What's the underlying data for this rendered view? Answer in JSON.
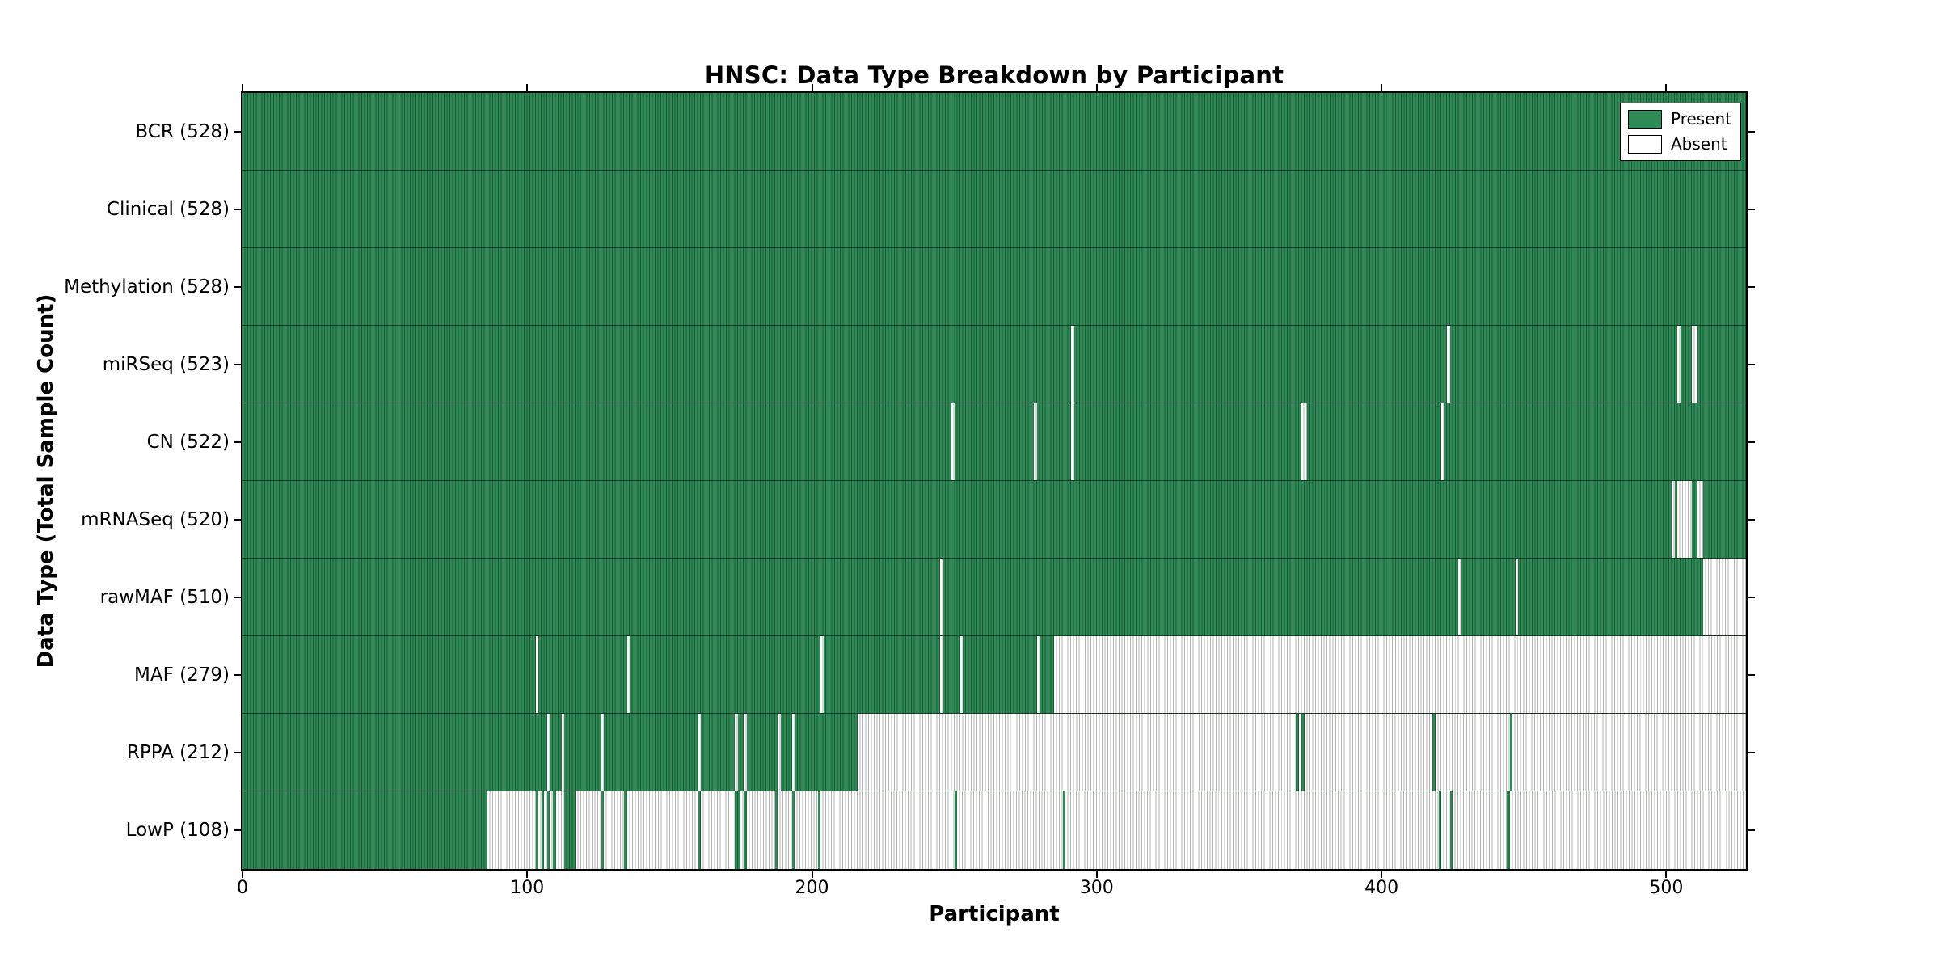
{
  "chart_data": {
    "type": "heatmap",
    "title": "HNSC: Data Type Breakdown by Participant",
    "xlabel": "Participant",
    "ylabel": "Data Type (Total Sample Count)",
    "x_range": [
      0,
      528
    ],
    "x_ticks": [
      0,
      100,
      200,
      300,
      400,
      500
    ],
    "grid": false,
    "legend": {
      "position": "upper right",
      "entries": [
        {
          "label": "Present",
          "color": "#2e8b57"
        },
        {
          "label": "Absent",
          "color": "#ffffff"
        }
      ]
    },
    "colors": {
      "present_fill": "#2e8b57",
      "present_edge": "#1d5736",
      "absent_fill": "#ffffff",
      "absent_edge": "#b3b3b3",
      "spine": "#000000",
      "row_separator": "rgba(0,0,0,0.55)"
    },
    "rows": [
      {
        "data_type": "BCR",
        "label": "BCR (528)",
        "present_count": 528,
        "absent_ranges": []
      },
      {
        "data_type": "Clinical",
        "label": "Clinical (528)",
        "present_count": 528,
        "absent_ranges": []
      },
      {
        "data_type": "Methylation",
        "label": "Methylation (528)",
        "present_count": 528,
        "absent_ranges": []
      },
      {
        "data_type": "miRSeq",
        "label": "miRSeq (523)",
        "present_count": 523,
        "absent_ranges": [
          [
            291,
            292
          ],
          [
            423,
            424
          ],
          [
            504,
            505
          ],
          [
            509,
            511
          ]
        ]
      },
      {
        "data_type": "CN",
        "label": "CN (522)",
        "present_count": 522,
        "absent_ranges": [
          [
            249,
            250
          ],
          [
            278,
            279
          ],
          [
            291,
            292
          ],
          [
            372,
            374
          ],
          [
            421,
            422
          ]
        ]
      },
      {
        "data_type": "mRNASeq",
        "label": "mRNASeq (520)",
        "present_count": 520,
        "absent_ranges": [
          [
            502,
            503
          ],
          [
            504,
            509
          ],
          [
            511,
            513
          ]
        ]
      },
      {
        "data_type": "rawMAF",
        "label": "rawMAF (510)",
        "present_count": 510,
        "absent_ranges": [
          [
            245,
            246
          ],
          [
            427,
            428
          ],
          [
            447,
            448
          ],
          [
            513,
            528
          ]
        ]
      },
      {
        "data_type": "MAF",
        "label": "MAF (279)",
        "present_count": 279,
        "absent_ranges": [
          [
            103,
            104
          ],
          [
            135,
            136
          ],
          [
            203,
            204
          ],
          [
            245,
            246
          ],
          [
            252,
            253
          ],
          [
            279,
            280
          ],
          [
            285,
            528
          ]
        ]
      },
      {
        "data_type": "RPPA",
        "label": "RPPA (212)",
        "present_count": 212,
        "absent_ranges": [
          [
            107,
            108
          ],
          [
            112,
            113
          ],
          [
            126,
            127
          ],
          [
            160,
            161
          ],
          [
            173,
            174
          ],
          [
            176,
            177
          ],
          [
            188,
            189
          ],
          [
            193,
            194
          ],
          [
            216,
            370
          ],
          [
            371,
            372
          ],
          [
            373,
            418
          ],
          [
            419,
            445
          ],
          [
            446,
            528
          ]
        ]
      },
      {
        "data_type": "LowP",
        "label": "LowP (108)",
        "present_count": 108,
        "absent_ranges": [
          [
            86,
            103
          ],
          [
            104,
            105
          ],
          [
            106,
            107
          ],
          [
            108,
            109
          ],
          [
            110,
            113
          ],
          [
            117,
            126
          ],
          [
            127,
            134
          ],
          [
            135,
            160
          ],
          [
            161,
            173
          ],
          [
            175,
            176
          ],
          [
            177,
            187
          ],
          [
            188,
            193
          ],
          [
            194,
            202
          ],
          [
            203,
            250
          ],
          [
            251,
            288
          ],
          [
            289,
            420
          ],
          [
            421,
            424
          ],
          [
            425,
            444
          ],
          [
            445,
            528
          ]
        ]
      }
    ]
  }
}
